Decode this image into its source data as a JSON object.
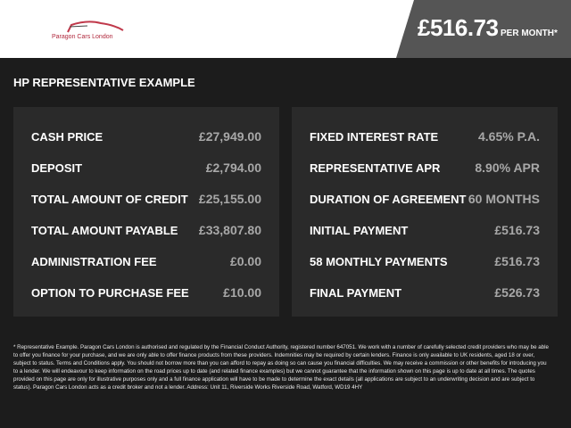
{
  "header": {
    "logo_text": "Paragon Cars London",
    "monthly_price": "£516.73",
    "per_month_label": "PER MONTH*"
  },
  "title": "HP REPRESENTATIVE EXAMPLE",
  "left": [
    {
      "label": "CASH PRICE",
      "value": "£27,949.00"
    },
    {
      "label": "DEPOSIT",
      "value": "£2,794.00"
    },
    {
      "label": "TOTAL AMOUNT OF CREDIT",
      "value": "£25,155.00"
    },
    {
      "label": "TOTAL AMOUNT PAYABLE",
      "value": "£33,807.80"
    },
    {
      "label": "ADMINISTRATION FEE",
      "value": "£0.00"
    },
    {
      "label": "OPTION TO PURCHASE FEE",
      "value": "£10.00"
    }
  ],
  "right": [
    {
      "label": "FIXED INTEREST RATE",
      "value": "4.65% P.A."
    },
    {
      "label": "REPRESENTATIVE APR",
      "value": "8.90% APR"
    },
    {
      "label": "DURATION OF AGREEMENT",
      "value": "60 MONTHS"
    },
    {
      "label": "INITIAL PAYMENT",
      "value": "£516.73"
    },
    {
      "label": "58 MONTHLY PAYMENTS",
      "value": "£516.73"
    },
    {
      "label": "FINAL PAYMENT",
      "value": "£526.73"
    }
  ],
  "footer": "* Representative Example. Paragon Cars London is authorised and regulated by the Financial Conduct Authority, registered number 647051. We work with a number of carefully selected credit providers who may be able to offer you finance for your purchase, and we are only able to offer finance products from these providers. Indemnities may be required by certain lenders. Finance is only available to UK residents, aged 18 or over, subject to status. Terms and Conditions apply. You should not borrow more than you can afford to repay as doing so can cause you financial difficulties. We may receive a commission or other benefits for introducing you to a lender. We will endeavour to keep information on the road prices up to date (and related finance examples) but we cannot guarantee that the information shown on this page is up to date at all times. The quotes provided on this page are only for illustrative purposes only and a full finance application will have to be made to determine the exact details (all applications are subject to an underwriting decision and are subject to status). Paragon Cars London acts as a credit broker and not a lender. Address: Unit 11, Riverside Works Riverside Road, Watford, WD19 4HY"
}
